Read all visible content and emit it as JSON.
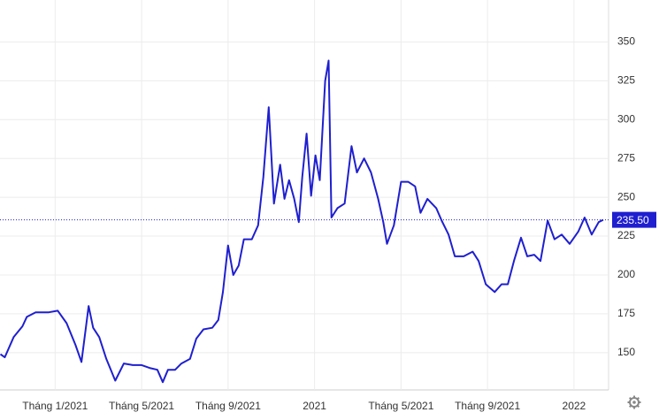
{
  "chart_data": {
    "type": "line",
    "series": [
      {
        "color": "#1f1fd0",
        "x": [
          -2.53,
          -2.33,
          -1.92,
          -1.51,
          -1.31,
          -0.9,
          -0.29,
          0.12,
          0.53,
          0.94,
          1.22,
          1.55,
          1.76,
          2.04,
          2.37,
          2.78,
          3.18,
          3.59,
          4,
          4.41,
          4.73,
          4.98,
          5.22,
          5.55,
          5.84,
          6.24,
          6.53,
          6.86,
          7.27,
          7.55,
          7.76,
          8,
          8.24,
          8.49,
          8.73,
          9.1,
          9.39,
          9.63,
          9.88,
          10.12,
          10.41,
          10.61,
          10.82,
          11.06,
          11.27,
          11.43,
          11.63,
          11.84,
          12.04,
          12.24,
          12.49,
          12.65,
          12.78,
          13.06,
          13.39,
          13.71,
          13.96,
          14.29,
          14.61,
          14.94,
          15.18,
          15.35,
          15.67,
          16,
          16.33,
          16.65,
          16.9,
          17.22,
          17.63,
          17.88,
          18.2,
          18.49,
          18.9,
          19.31,
          19.59,
          19.92,
          20.33,
          20.65,
          20.94,
          21.22,
          21.55,
          21.84,
          22.16,
          22.45,
          22.78,
          23.1,
          23.43,
          23.8,
          24.2,
          24.49,
          24.82,
          25.14,
          25.35
        ],
        "values": [
          149,
          147,
          160,
          167,
          173,
          176,
          176,
          177,
          169,
          155,
          144,
          180,
          166,
          160,
          146,
          132,
          143,
          142,
          142,
          140,
          139,
          131,
          139,
          139,
          143,
          146,
          159,
          165,
          166,
          171,
          189,
          219,
          200,
          206,
          223,
          223,
          232,
          263,
          308,
          246,
          271,
          249,
          261,
          249,
          234,
          263,
          291,
          251,
          277,
          261,
          325,
          338,
          237,
          243,
          246,
          283,
          266,
          275,
          266,
          249,
          234,
          220,
          232,
          260,
          260,
          257,
          240,
          249,
          243,
          235,
          226,
          212,
          212,
          215,
          209,
          194,
          189,
          194,
          194,
          209,
          224,
          212,
          213,
          209,
          235,
          223,
          226,
          220,
          228,
          237,
          226,
          234,
          235.5
        ]
      }
    ],
    "current": {
      "value": 235.5,
      "label": "235.50"
    },
    "xlim": [
      -2.55,
      25.6
    ],
    "xticks": [
      {
        "value": 0,
        "label": "Tháng 1/2021"
      },
      {
        "value": 4,
        "label": "Tháng 5/2021"
      },
      {
        "value": 8,
        "label": "Tháng 9/2021"
      },
      {
        "value": 12,
        "label": "2021"
      },
      {
        "value": 16,
        "label": "Tháng 5/2021"
      },
      {
        "value": 20,
        "label": "Tháng 9/2021"
      },
      {
        "value": 24,
        "label": "2022"
      }
    ],
    "ylim": [
      126,
      377
    ],
    "yticks": [
      150,
      175,
      200,
      225,
      250,
      275,
      300,
      325,
      350
    ],
    "grid": true
  }
}
